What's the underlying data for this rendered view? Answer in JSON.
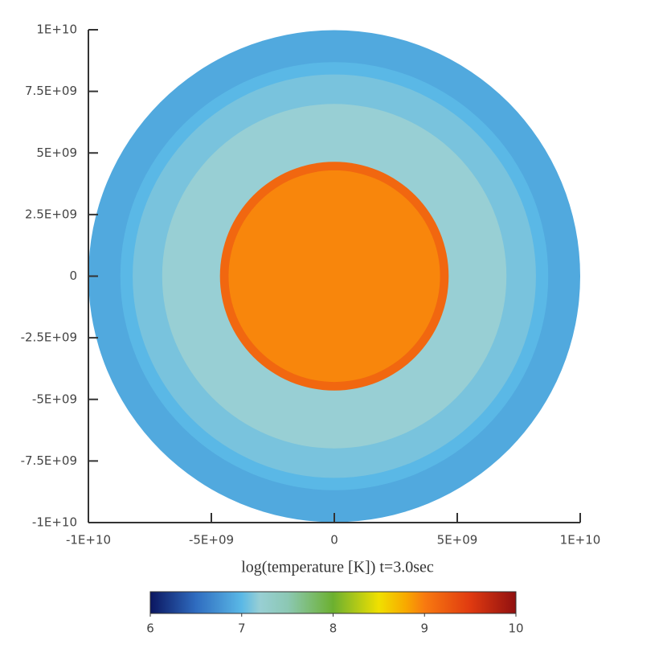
{
  "chart_data": {
    "type": "radial-map",
    "title": "log(temperature [K]) t=3.0sec",
    "xlim": [
      -10000000000,
      10000000000
    ],
    "ylim": [
      -10000000000,
      10000000000
    ],
    "xticks": [
      {
        "value": -10000000000,
        "label": "-1E+10"
      },
      {
        "value": -5000000000,
        "label": "-5E+09"
      },
      0,
      {
        "value": 5000000000,
        "label": "5E+09"
      },
      {
        "value": 10000000000,
        "label": "1E+10"
      }
    ],
    "yticks": [
      {
        "value": -10000000000,
        "label": "-1E+10"
      },
      {
        "value": -7500000000,
        "label": "-7.5E+09"
      },
      {
        "value": -5000000000,
        "label": "-5E+09"
      },
      {
        "value": -2500000000,
        "label": "-2.5E+09"
      },
      0,
      {
        "value": 2500000000,
        "label": "2.5E+09"
      },
      {
        "value": 5000000000,
        "label": "5E+09"
      },
      {
        "value": 7500000000,
        "label": "7.5E+09"
      },
      {
        "value": 10000000000,
        "label": "1E+10"
      }
    ],
    "shells": [
      {
        "radius": 10000000000,
        "value": 6.9
      },
      {
        "radius": 8700000000,
        "value": 7.0
      },
      {
        "radius": 8200000000,
        "value": 7.1
      },
      {
        "radius": 7000000000,
        "value": 7.2
      },
      {
        "radius": 4650000000,
        "value": 9.15
      },
      {
        "radius": 4300000000,
        "value": 8.95
      }
    ],
    "colorbar": {
      "lim": [
        6,
        10
      ],
      "ticks": [
        6,
        7,
        8,
        9,
        10
      ],
      "colorscale": [
        [
          6,
          "#0b1660"
        ],
        [
          6.5,
          "#2f6cc0"
        ],
        [
          7,
          "#5ab8e6"
        ],
        [
          7.2,
          "#98cfd4"
        ],
        [
          7.5,
          "#8cc8b4"
        ],
        [
          8,
          "#6cb030"
        ],
        [
          8.5,
          "#f0e000"
        ],
        [
          8.8,
          "#f8a800"
        ],
        [
          9,
          "#f87a10"
        ],
        [
          9.5,
          "#e03a10"
        ],
        [
          10,
          "#901010"
        ]
      ]
    }
  }
}
